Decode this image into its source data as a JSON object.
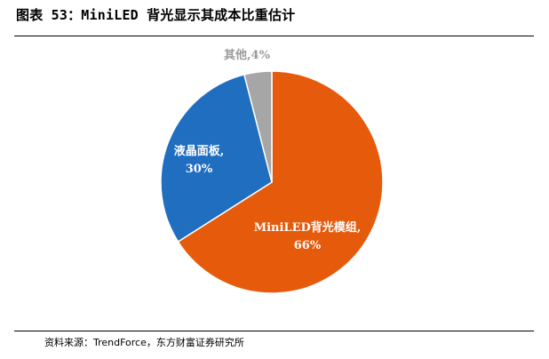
{
  "figure": {
    "title": "图表 53：MiniLED 背光显示其成本比重估计",
    "source": "资料来源：TrendForce，东方财富证券研究所"
  },
  "colors": {
    "orange": "#E65A0C",
    "blue": "#1F6EC0",
    "gray": "#A6A6A6",
    "label_gray": "#999999"
  },
  "chart_data": {
    "type": "pie",
    "title": "",
    "slices": [
      {
        "name": "MiniLED背光模组",
        "value": 66,
        "label_line1": "MiniLED背光模组,",
        "label_line2": "66%",
        "color": "#E65A0C",
        "text_color": "#ffffff"
      },
      {
        "name": "液晶面板",
        "value": 30,
        "label_line1": "液晶面板,",
        "label_line2": "30%",
        "color": "#1F6EC0",
        "text_color": "#ffffff"
      },
      {
        "name": "其他",
        "value": 4,
        "label_line1": "其他,4%",
        "label_line2": "",
        "color": "#A6A6A6",
        "text_color": "#999999"
      }
    ],
    "start_angle_deg": 0,
    "direction": "clockwise",
    "legend": "none"
  }
}
